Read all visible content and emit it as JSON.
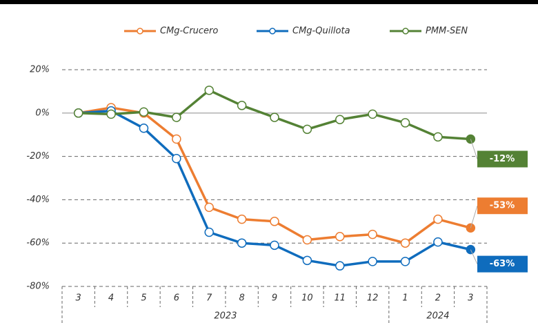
{
  "chart_data": {
    "type": "line",
    "categories": [
      "3",
      "4",
      "5",
      "6",
      "7",
      "8",
      "9",
      "10",
      "11",
      "12",
      "1",
      "2",
      "3"
    ],
    "groups": [
      {
        "label": "2023",
        "count": 10
      },
      {
        "label": "2024",
        "count": 3
      }
    ],
    "series": [
      {
        "name": "CMg-Crucero",
        "color": "#ed7d31",
        "values": [
          0,
          2.5,
          0,
          -12,
          -43.5,
          -49,
          -50,
          -58.5,
          -57,
          -56,
          -60,
          -49,
          -53
        ],
        "end_label": "-53%"
      },
      {
        "name": "CMg-Quillota",
        "color": "#0f6cbd",
        "values": [
          0,
          1,
          -7,
          -21,
          -55,
          -60,
          -61,
          -68,
          -70.5,
          -68.5,
          -68.5,
          -59.5,
          -63
        ],
        "end_label": "-63%"
      },
      {
        "name": "PMM-SEN",
        "color": "#548235",
        "values": [
          0,
          -0.5,
          0.5,
          -2,
          10.5,
          3.5,
          -2,
          -7.5,
          -3,
          -0.5,
          -4.5,
          -11,
          -12
        ],
        "end_label": "-12%"
      }
    ],
    "ylim": [
      -80,
      20
    ],
    "yticks": [
      {
        "value": -80,
        "label": "-80%"
      },
      {
        "value": -60,
        "label": "-60%"
      },
      {
        "value": -40,
        "label": "-40%"
      },
      {
        "value": -20,
        "label": "-20%"
      },
      {
        "value": 0,
        "label": "0%"
      },
      {
        "value": 20,
        "label": "20%"
      }
    ],
    "grid": true,
    "legend": "top"
  }
}
